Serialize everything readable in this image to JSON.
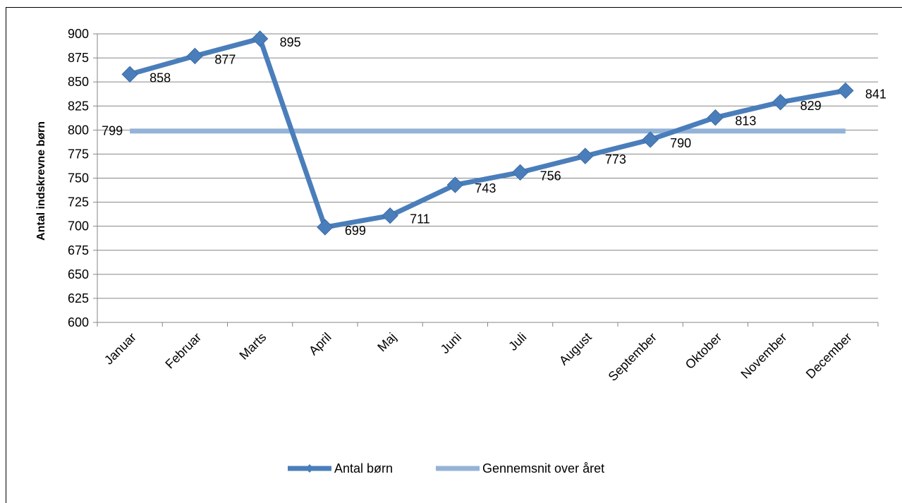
{
  "chart_data": {
    "type": "line",
    "title": "",
    "xlabel": "",
    "ylabel": "Antal indskrevne børn",
    "categories": [
      "Januar",
      "Februar",
      "Marts",
      "April",
      "Maj",
      "Juni",
      "Juli",
      "August",
      "September",
      "Oktober",
      "November",
      "December"
    ],
    "series": [
      {
        "name": "Antal børn",
        "values": [
          858,
          877,
          895,
          699,
          711,
          743,
          756,
          773,
          790,
          813,
          829,
          841
        ],
        "color": "#4A7EBB",
        "marker": "diamond"
      },
      {
        "name": "Gennemsnit over året",
        "values": [
          799,
          799,
          799,
          799,
          799,
          799,
          799,
          799,
          799,
          799,
          799,
          799
        ],
        "color": "#95B3D7",
        "marker": "none"
      }
    ],
    "ylim": [
      600,
      900
    ],
    "ytick_step": 25,
    "grid": true,
    "legend_position": "bottom"
  }
}
